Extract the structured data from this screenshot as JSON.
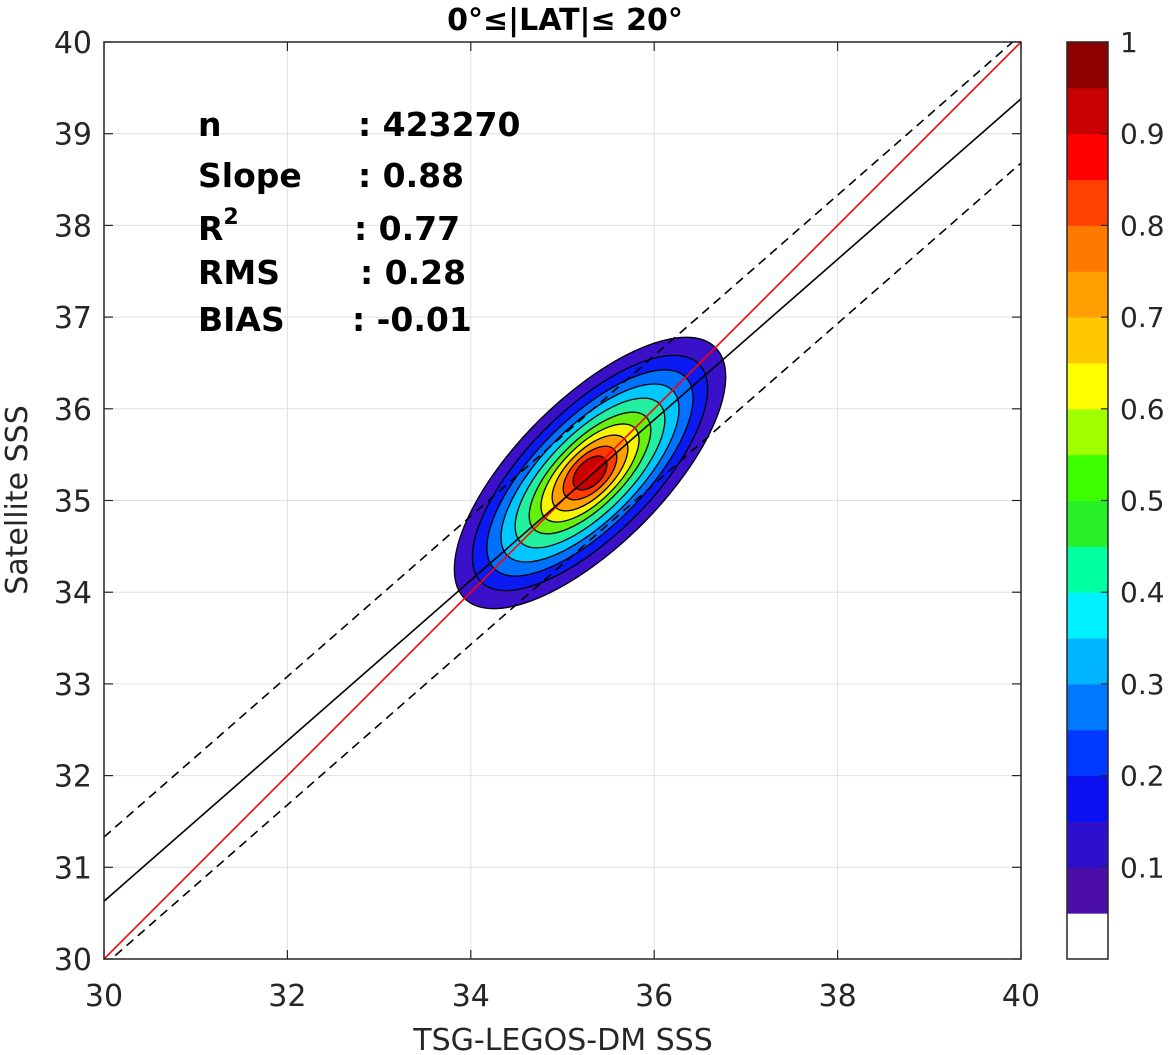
{
  "chart_data": {
    "type": "contour",
    "title": "0°≤|LAT|≤ 20°",
    "xlabel": "TSG-LEGOS-DM SSS",
    "ylabel": "Satellite SSS",
    "xlim": [
      30,
      40
    ],
    "ylim": [
      30,
      40
    ],
    "xticks": [
      "30",
      "32",
      "34",
      "36",
      "38",
      "40"
    ],
    "yticks": [
      "30",
      "31",
      "32",
      "33",
      "34",
      "35",
      "36",
      "37",
      "38",
      "39",
      "40"
    ],
    "grid": true,
    "stats": [
      {
        "label": "n",
        "value": ": 423270"
      },
      {
        "label": "Slope",
        "value": ": 0.88"
      },
      {
        "label": "R",
        "sup": "2",
        "value": ": 0.77"
      },
      {
        "label": "RMS",
        "value": ": 0.28"
      },
      {
        "label": "BIAS",
        "value": ": -0.01"
      }
    ],
    "density": {
      "center": [
        35.3,
        35.3
      ],
      "major_axis_angle_deg": 45,
      "levels": [
        {
          "level": 0.05,
          "half_major": 1.9,
          "half_minor": 0.42,
          "color": "#3a10c8"
        },
        {
          "level": 0.15,
          "half_major": 1.65,
          "half_minor": 0.36,
          "color": "#0a1af0"
        },
        {
          "level": 0.25,
          "half_major": 1.45,
          "half_minor": 0.31,
          "color": "#0070ff"
        },
        {
          "level": 0.35,
          "half_major": 1.25,
          "half_minor": 0.27,
          "color": "#00c8ff"
        },
        {
          "level": 0.45,
          "half_major": 1.05,
          "half_minor": 0.23,
          "color": "#22f0a0"
        },
        {
          "level": 0.55,
          "half_major": 0.85,
          "half_minor": 0.19,
          "color": "#66f010"
        },
        {
          "level": 0.65,
          "half_major": 0.68,
          "half_minor": 0.16,
          "color": "#f6f400"
        },
        {
          "level": 0.75,
          "half_major": 0.52,
          "half_minor": 0.13,
          "color": "#ffa000"
        },
        {
          "level": 0.85,
          "half_major": 0.36,
          "half_minor": 0.1,
          "color": "#ff3c00"
        },
        {
          "level": 0.95,
          "half_major": 0.22,
          "half_minor": 0.07,
          "color": "#c80000"
        }
      ]
    },
    "lines": [
      {
        "name": "1:1",
        "style": "solid",
        "color": "#ff0000",
        "points": [
          [
            30,
            30
          ],
          [
            40,
            40
          ]
        ]
      },
      {
        "name": "fit",
        "style": "solid",
        "color": "#000000",
        "points": [
          [
            30,
            30.63
          ],
          [
            40,
            39.38
          ]
        ]
      },
      {
        "name": "fit+",
        "style": "dashed",
        "color": "#000000",
        "points": [
          [
            30,
            31.33
          ],
          [
            40,
            40.08
          ]
        ]
      },
      {
        "name": "fit-",
        "style": "dashed",
        "color": "#000000",
        "points": [
          [
            30,
            29.93
          ],
          [
            40,
            38.68
          ]
        ]
      }
    ],
    "colorbar": {
      "ticks": [
        "0.1",
        "0.2",
        "0.3",
        "0.4",
        "0.5",
        "0.6",
        "0.7",
        "0.8",
        "0.9",
        "1"
      ],
      "tick_values": [
        0.1,
        0.2,
        0.3,
        0.4,
        0.5,
        0.6,
        0.7,
        0.8,
        0.9,
        1.0
      ],
      "colors": [
        "#ffffff",
        "#4b0fa8",
        "#2c10cc",
        "#0a10f0",
        "#0038ff",
        "#0078ff",
        "#00b4ff",
        "#00f0ff",
        "#00ffa0",
        "#28f028",
        "#3cff00",
        "#a0ff00",
        "#ffff00",
        "#ffc800",
        "#ffa000",
        "#ff7800",
        "#ff4100",
        "#ff0000",
        "#c80000",
        "#8c0000"
      ]
    }
  }
}
